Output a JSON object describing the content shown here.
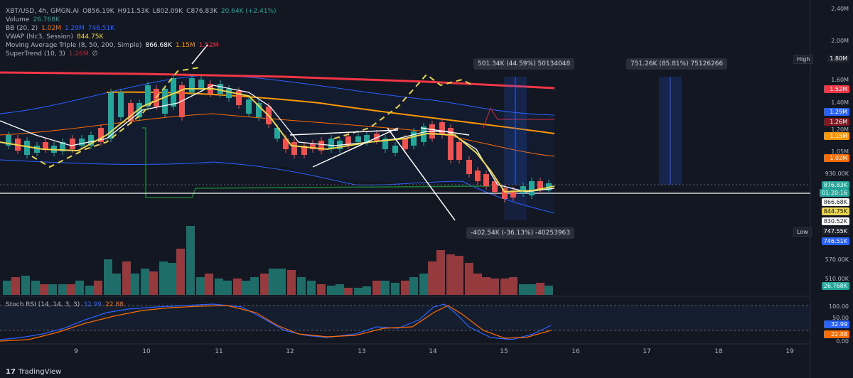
{
  "header": {
    "symbol": "XBT/USD, 4h, GMGN.AI",
    "open": "O856.19K",
    "high": "H911.53K",
    "low": "L802.09K",
    "close": "C876.83K",
    "change": "20.64K (+2.41%)"
  },
  "indicators": {
    "volume": {
      "label": "Volume",
      "value": "26.768K"
    },
    "bb": {
      "label": "BB (20, 2)",
      "v1": "1.02M",
      "v2": "1.29M",
      "v3": "746.51K"
    },
    "vwap": {
      "label": "VWAP (hlc3, Session)",
      "value": "844.75K"
    },
    "ma": {
      "label": "Moving Average Triple (8, 50, 200, Simple)",
      "v1": "866.68K",
      "v2": "1.15M",
      "v3": "1.52M"
    },
    "supertrend": {
      "label": "SuperTrend (10, 3)",
      "v1": "1.26M",
      "v2": "∅"
    }
  },
  "rsi": {
    "label": "Stoch RSI (14, 14, 3, 3)",
    "k": "32.99",
    "d": "22.88"
  },
  "price_axis": [
    "2.40M",
    "2.00M",
    "1.60M",
    "1.40M",
    "1.20M",
    "1.05M",
    "930.00K",
    "570.00K",
    "510.00K"
  ],
  "rsi_axis": [
    "100.00",
    "50.00",
    "0.00"
  ],
  "x_axis": [
    "9",
    "10",
    "11",
    "12",
    "13",
    "14",
    "15",
    "16",
    "17",
    "18",
    "19"
  ],
  "price_tags": [
    {
      "label": "1.52M",
      "color": "#f23645"
    },
    {
      "label": "1.29M",
      "color": "#2962ff"
    },
    {
      "label": "1.26M",
      "color": "#801922"
    },
    {
      "label": "1.15M",
      "color": "#ff9800"
    },
    {
      "label": "1.02M",
      "color": "#ff6d00"
    },
    {
      "label": "876.83K",
      "color": "#26a69a"
    },
    {
      "label": "01:20:16",
      "color": "#26a69a"
    },
    {
      "label": "866.68K",
      "color": "#ffffff"
    },
    {
      "label": "844.75K",
      "color": "#e8d44d"
    },
    {
      "label": "830.52K",
      "color": "#ffffff"
    },
    {
      "label": "746.51K",
      "color": "#2962ff"
    }
  ],
  "high_marker": {
    "label": "High",
    "value": "1.80M"
  },
  "low_marker": {
    "label": "Low",
    "value": "747.55K"
  },
  "volume_tag": "26.768K",
  "rsi_tags": {
    "k": "32.99",
    "d": "22.88"
  },
  "measurements": [
    {
      "text": "501.34K (44.59%) 50134048"
    },
    {
      "text": "751.26K (85.81%) 75126266"
    },
    {
      "text": "-402.54K (-36.13%) -40253963"
    }
  ],
  "footer": {
    "brand": "TradingView"
  },
  "colors": {
    "up": "#26a69a",
    "down": "#ef5350",
    "bg": "#131722"
  }
}
